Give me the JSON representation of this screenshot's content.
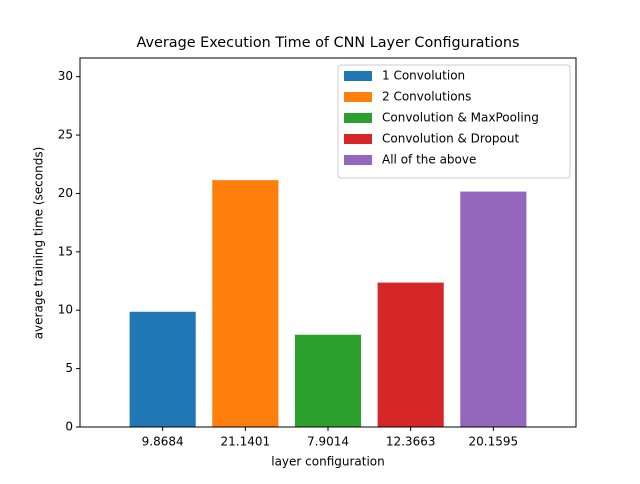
{
  "chart_data": {
    "type": "bar",
    "title": "Average Execution Time of CNN Layer Configurations",
    "xlabel": "layer configuration",
    "ylabel": "average training time (seconds)",
    "categories": [
      "9.8684",
      "21.1401",
      "7.9014",
      "12.3663",
      "20.1595"
    ],
    "series": [
      {
        "name": "1 Convolution",
        "color": "#1f77b4",
        "values": [
          9.8684,
          null,
          null,
          null,
          null
        ]
      },
      {
        "name": "2 Convolutions",
        "color": "#ff7f0e",
        "values": [
          null,
          21.1401,
          null,
          null,
          null
        ]
      },
      {
        "name": "Convolution & MaxPooling",
        "color": "#2ca02c",
        "values": [
          null,
          null,
          7.9014,
          null,
          null
        ]
      },
      {
        "name": "Convolution & Dropout",
        "color": "#d62728",
        "values": [
          null,
          null,
          null,
          12.3663,
          null
        ]
      },
      {
        "name": "All of the above",
        "color": "#9467bd",
        "values": [
          null,
          null,
          null,
          null,
          20.1595
        ]
      }
    ],
    "ylim": [
      0,
      31.6
    ],
    "yticks": [
      0,
      5,
      10,
      15,
      20,
      25,
      30
    ],
    "legend": "upper right",
    "grid": false
  }
}
